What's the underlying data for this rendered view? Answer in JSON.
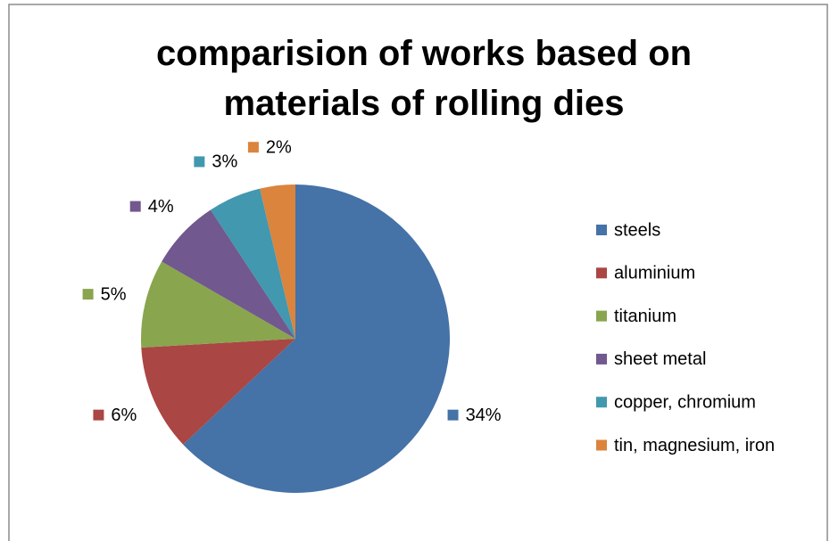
{
  "chart_data": {
    "type": "pie",
    "title": "comparision of works based on materials of rolling dies",
    "categories": [
      "steels",
      "aluminium",
      "titanium",
      "sheet metal",
      "copper, chromium",
      "tin, magnesium, iron"
    ],
    "values": [
      34,
      6,
      5,
      4,
      3,
      2
    ],
    "value_labels": [
      "34%",
      "6%",
      "5%",
      "4%",
      "3%",
      "2%"
    ],
    "colors": [
      "#4572a7",
      "#aa4643",
      "#89a54e",
      "#71588f",
      "#4198af",
      "#db843d"
    ],
    "legend": "right"
  }
}
